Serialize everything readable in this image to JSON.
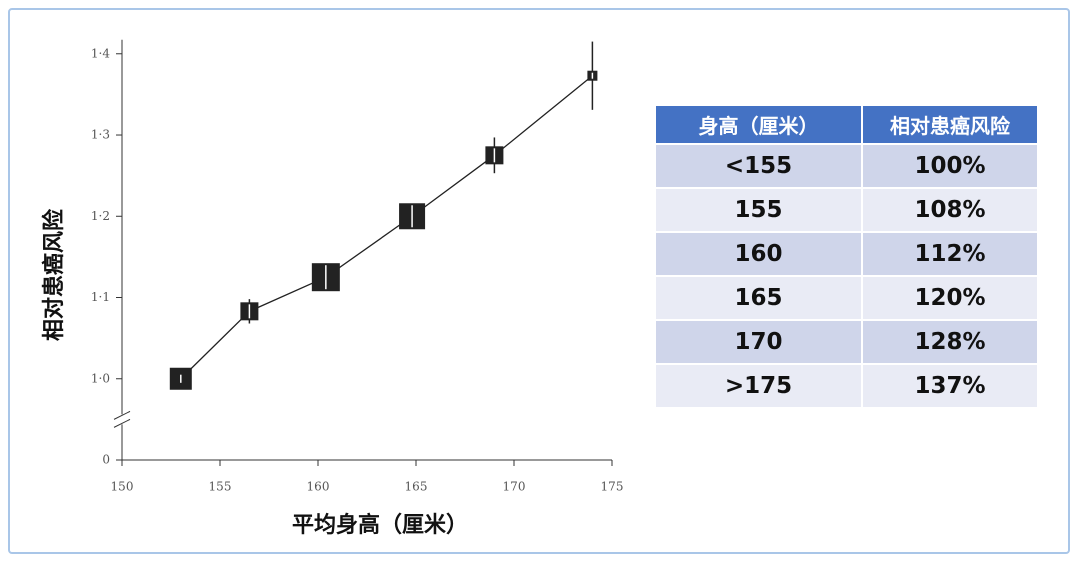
{
  "chart_data": {
    "type": "line",
    "x_label": "平均身高（厘米）",
    "y_label": "相对患癌风险",
    "x": [
      153,
      156.5,
      160.4,
      164.8,
      169,
      174
    ],
    "values": [
      1.0,
      1.083,
      1.125,
      1.2,
      1.275,
      1.373
    ],
    "errors": [
      0.005,
      0.015,
      0.015,
      0.015,
      0.022,
      0.042
    ],
    "sizes": [
      22,
      18,
      28,
      26,
      18,
      10
    ],
    "color": "#222222",
    "xlim": [
      150,
      175
    ],
    "xticks": [
      150,
      155,
      160,
      165,
      170,
      175
    ],
    "ylim": [
      0,
      1.43
    ],
    "y_break": [
      0,
      0.9
    ],
    "yticks": [
      0,
      {
        "value": 1.0,
        "label": "1·0"
      },
      {
        "value": 1.1,
        "label": "1·1"
      },
      {
        "value": 1.2,
        "label": "1·2"
      },
      {
        "value": 1.3,
        "label": "1·3"
      },
      {
        "value": 1.4,
        "label": "1·4"
      }
    ]
  },
  "table": {
    "header": [
      "身高（厘米）",
      "相对患癌风险"
    ],
    "rows": [
      [
        "<155",
        "100%"
      ],
      [
        "155",
        "108%"
      ],
      [
        "160",
        "112%"
      ],
      [
        "165",
        "120%"
      ],
      [
        "170",
        "128%"
      ],
      [
        ">175",
        "137%"
      ]
    ]
  }
}
